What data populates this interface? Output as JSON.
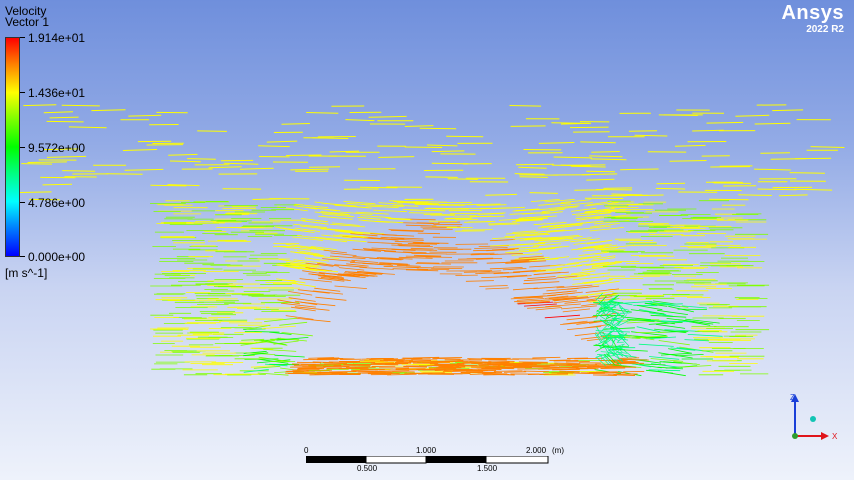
{
  "legend": {
    "title": "Velocity",
    "subtitle": "Vector 1",
    "values": [
      "1.914e+01",
      "1.436e+01",
      "9.572e+00",
      "4.786e+00",
      "0.000e+00"
    ],
    "unit": "[m s^-1]",
    "colormap": [
      "#0000ff",
      "#0080ff",
      "#00ffff",
      "#00ff80",
      "#00ff00",
      "#80ff00",
      "#ffff00",
      "#ff8000",
      "#ff0000"
    ]
  },
  "brand": {
    "name": "Ansys",
    "version": "2022 R2"
  },
  "scale_bar": {
    "top_labels": [
      "0",
      "1.000",
      "2.000",
      "(m)"
    ],
    "bottom_labels": [
      "0.500",
      "1.500"
    ]
  },
  "axes": {
    "vertical": "Z",
    "horizontal": "X",
    "colors": {
      "z": "#1a3fd8",
      "x": "#e0141b",
      "origin": "#12c4b4"
    }
  }
}
